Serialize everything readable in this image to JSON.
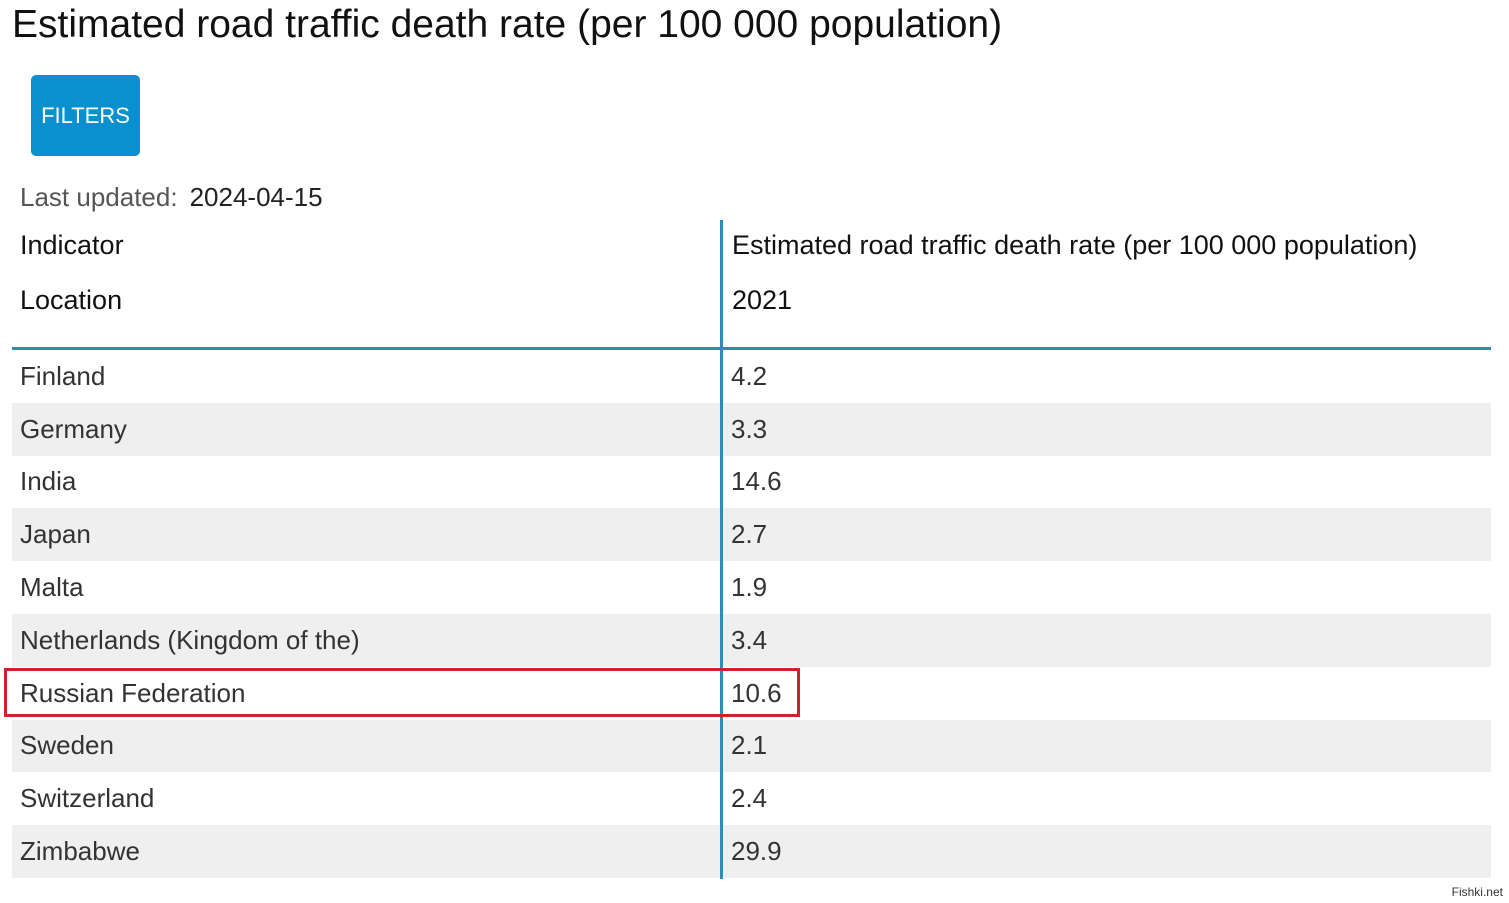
{
  "page": {
    "title": "Estimated road traffic death rate (per 100 000 population)",
    "filters_label": "FILTERS",
    "last_updated_label": "Last updated:",
    "last_updated_value": "2024-04-15",
    "watermark": "Fishki.net"
  },
  "table": {
    "header_indicator_label": "Indicator",
    "header_indicator_value": "Estimated road traffic death rate (per 100 000 population)",
    "header_location_label": "Location",
    "header_year": "2021",
    "rows": [
      {
        "location": "Finland",
        "value": "4.2"
      },
      {
        "location": "Germany",
        "value": "3.3"
      },
      {
        "location": "India",
        "value": "14.6"
      },
      {
        "location": "Japan",
        "value": "2.7"
      },
      {
        "location": "Malta",
        "value": "1.9"
      },
      {
        "location": "Netherlands (Kingdom of the)",
        "value": "3.4"
      },
      {
        "location": "Russian Federation",
        "value": "10.6"
      },
      {
        "location": "Sweden",
        "value": "2.1"
      },
      {
        "location": "Switzerland",
        "value": "2.4"
      },
      {
        "location": "Zimbabwe",
        "value": "29.9"
      }
    ],
    "highlighted_row": "Russian Federation"
  },
  "colors": {
    "accent": "#0a8fcf",
    "divider": "#2a8fb8",
    "highlight": "#d0202c",
    "row_shade": "#efefef"
  }
}
